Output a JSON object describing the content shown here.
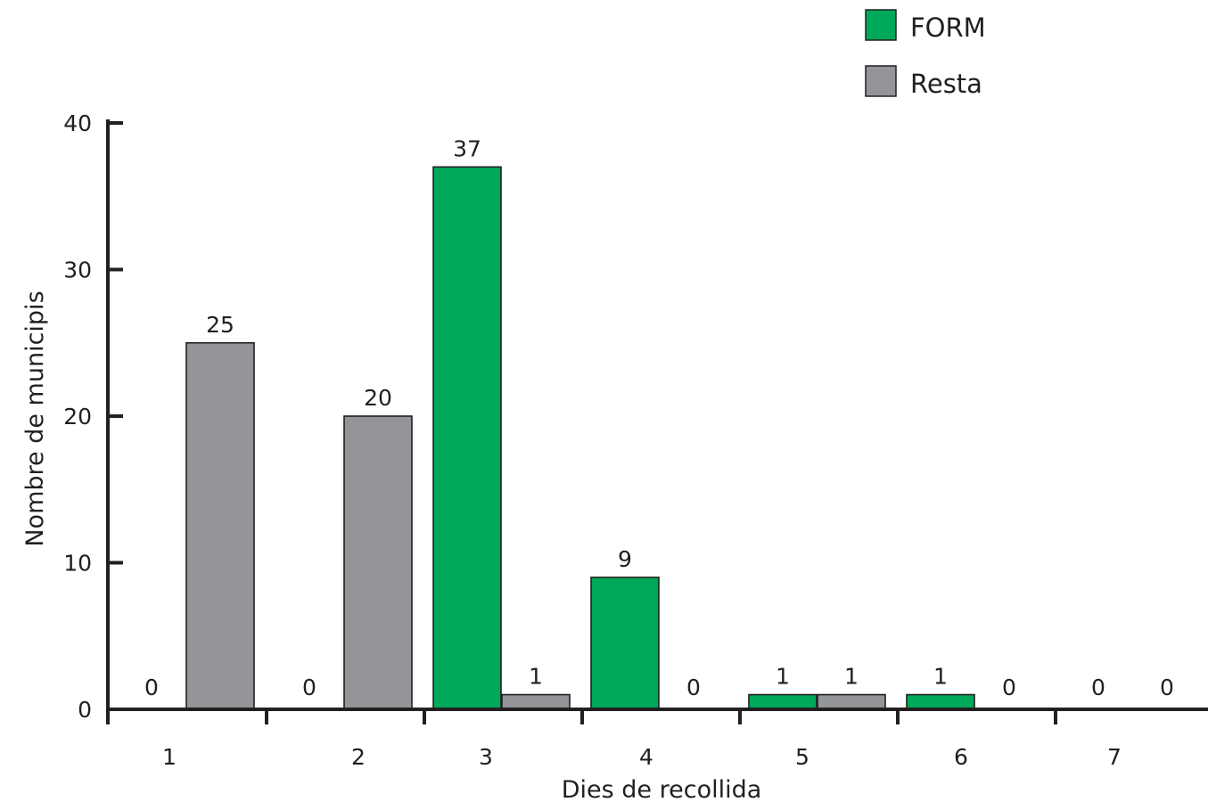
{
  "colors": {
    "form": "#00a859",
    "resta": "#939598",
    "axis": "#231f20"
  },
  "chart_data": {
    "type": "bar",
    "xlabel": "Dies de recollida",
    "ylabel": "Nombre de municipis",
    "ylim": [
      0,
      40
    ],
    "yticks": [
      0,
      10,
      20,
      30,
      40
    ],
    "grid": false,
    "legend_position": "top-right",
    "categories": [
      "1",
      "2",
      "3",
      "4",
      "5",
      "6",
      "7"
    ],
    "series": [
      {
        "name": "FORM",
        "color": "#00a859",
        "values": [
          0,
          0,
          37,
          9,
          1,
          1,
          0
        ]
      },
      {
        "name": "Resta",
        "color": "#939598",
        "values": [
          25,
          20,
          1,
          0,
          1,
          0,
          0
        ]
      }
    ],
    "data_labels": {
      "FORM": [
        "0",
        "0",
        "37",
        "9",
        "1",
        "1",
        "0"
      ],
      "Resta": [
        "25",
        "20",
        "1",
        "0",
        "1",
        "0",
        "0"
      ]
    }
  }
}
